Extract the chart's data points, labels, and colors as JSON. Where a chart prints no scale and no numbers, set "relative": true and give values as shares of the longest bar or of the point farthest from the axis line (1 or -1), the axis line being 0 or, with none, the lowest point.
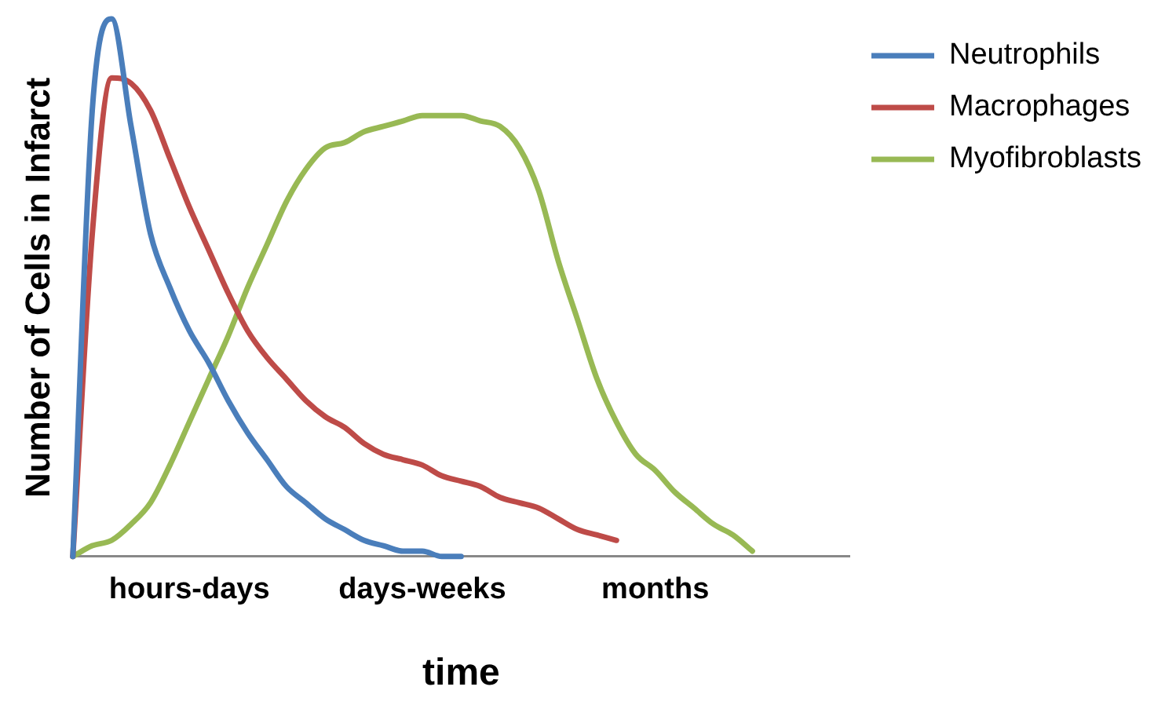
{
  "chart_data": {
    "type": "line",
    "xlabel": "time",
    "ylabel": "Number of Cells in Infarct",
    "relative": true,
    "categories": [
      null,
      null,
      null,
      null,
      null,
      null,
      "hours-days",
      null,
      null,
      null,
      null,
      null,
      null,
      null,
      null,
      null,
      null,
      null,
      "days-weeks",
      null,
      null,
      null,
      null,
      null,
      null,
      null,
      null,
      null,
      null,
      null,
      "months",
      null,
      null,
      null,
      null,
      null,
      null,
      null,
      null,
      null,
      null
    ],
    "legend": "top right",
    "grid": false,
    "marker": "none",
    "line_style": "solid",
    "series": [
      {
        "name": "Neutrophils",
        "color": "#4a7ebb",
        "values": [
          0,
          0.83,
          1,
          0.8,
          0.6,
          0.5,
          0.42,
          0.36,
          0.29,
          0.23,
          0.18,
          0.13,
          0.1,
          0.07,
          0.05,
          0.03,
          0.02,
          0.01,
          0.01,
          0,
          0,
          null,
          null,
          null,
          null,
          null,
          null,
          null,
          null,
          null,
          null,
          null,
          null,
          null,
          null,
          null,
          null,
          null,
          null,
          null,
          null
        ]
      },
      {
        "name": "Macrophages",
        "color": "#be4b48",
        "values": [
          0,
          0.6,
          0.89,
          0.88,
          0.83,
          0.74,
          0.65,
          0.57,
          0.49,
          0.42,
          0.37,
          0.33,
          0.29,
          0.26,
          0.24,
          0.21,
          0.19,
          0.18,
          0.17,
          0.15,
          0.14,
          0.13,
          0.11,
          0.1,
          0.09,
          0.07,
          0.05,
          0.04,
          0.03,
          null,
          null,
          null,
          null,
          null,
          null,
          null,
          null,
          null,
          null,
          null,
          null
        ]
      },
      {
        "name": "Myofibroblasts",
        "color": "#98b954",
        "values": [
          0,
          0.02,
          0.03,
          0.06,
          0.1,
          0.17,
          0.25,
          0.33,
          0.41,
          0.5,
          0.58,
          0.66,
          0.72,
          0.76,
          0.77,
          0.79,
          0.8,
          0.81,
          0.82,
          0.82,
          0.82,
          0.81,
          0.8,
          0.76,
          0.68,
          0.55,
          0.44,
          0.33,
          0.25,
          0.19,
          0.16,
          0.12,
          0.09,
          0.06,
          0.04,
          0.01,
          null,
          null,
          null,
          null,
          null
        ]
      }
    ]
  }
}
